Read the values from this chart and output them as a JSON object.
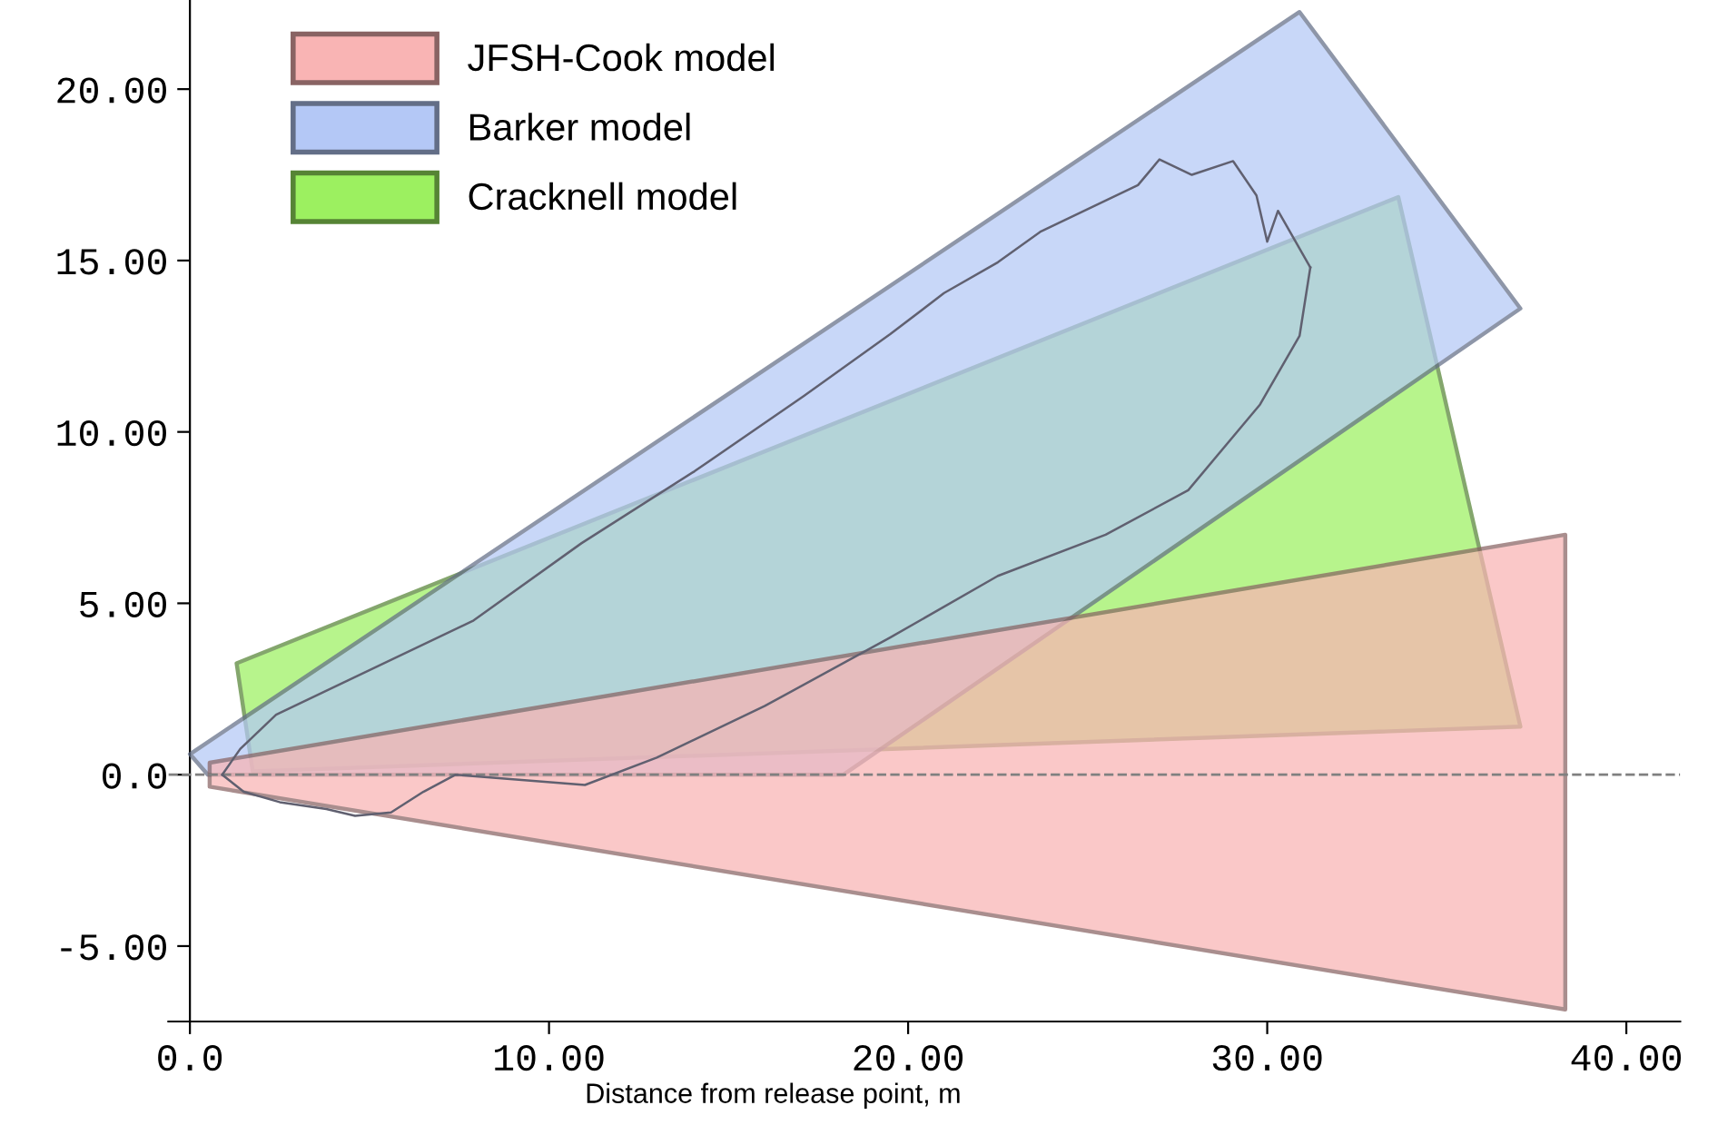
{
  "chart_data": {
    "type": "area",
    "xlabel": "Distance from release point, m",
    "xlim": [
      -0.6,
      41.5
    ],
    "ylim": [
      -7.2,
      22.6
    ],
    "xticks": [
      {
        "value": 0,
        "label": "0.0"
      },
      {
        "value": 10,
        "label": "10.00"
      },
      {
        "value": 20,
        "label": "20.00"
      },
      {
        "value": 30,
        "label": "30.00"
      },
      {
        "value": 40,
        "label": "40.00"
      }
    ],
    "yticks": [
      {
        "value": -5,
        "label": "-5.00"
      },
      {
        "value": 0,
        "label": "0.0"
      },
      {
        "value": 5,
        "label": "5.00"
      },
      {
        "value": 10,
        "label": "10.00"
      },
      {
        "value": 15,
        "label": "15.00"
      },
      {
        "value": 20,
        "label": "20.00"
      }
    ],
    "legend": "top left",
    "grid": false,
    "ref_lines": [
      {
        "axis": "y",
        "value": 0,
        "color": "#808080",
        "line_style": "dashed"
      }
    ],
    "series": [
      {
        "name": "Cracknell model",
        "color": "#9cf060",
        "x": [
          1.3,
          33.65,
          37.05,
          1.75
        ],
        "values": [
          3.25,
          16.85,
          1.4,
          0.1
        ]
      },
      {
        "name": "Barker model",
        "color": "#b4c8f6",
        "x": [
          0,
          30.9,
          37.05,
          18.2,
          0.5
        ],
        "values": [
          0.6,
          22.25,
          13.6,
          0,
          0
        ]
      },
      {
        "name": "JFSH-Cook model",
        "color": "#f9b4b4",
        "x": [
          0.55,
          38.3,
          38.3,
          0.55
        ],
        "values": [
          0.35,
          7.0,
          -6.85,
          -0.35
        ]
      },
      {
        "type": "line",
        "color": "#606070",
        "x": [
          0.9,
          1.4,
          2.4,
          4.4,
          7.9,
          10.9,
          14.05,
          17.1,
          19.5,
          21.0,
          22.5,
          23.7,
          26.4,
          27.0,
          27.9,
          29.05,
          29.7,
          30.0,
          30.3,
          31.2
        ],
        "values": [
          0,
          0.75,
          1.75,
          2.75,
          4.5,
          6.75,
          8.85,
          11.05,
          12.85,
          14.05,
          14.95,
          15.85,
          17.2,
          17.95,
          17.5,
          17.9,
          16.9,
          15.55,
          16.45,
          14.8
        ]
      },
      {
        "type": "line",
        "color": "#606070",
        "x": [
          0.9,
          1.5,
          2.5,
          3.8,
          4.6,
          5.6,
          6.5,
          7.4,
          11.0,
          13.0,
          16.0,
          19.5,
          22.5,
          25.5,
          27.8,
          29.8,
          30.9,
          31.2
        ],
        "values": [
          0,
          -0.5,
          -0.8,
          -1.0,
          -1.2,
          -1.1,
          -0.5,
          0,
          -0.3,
          0.5,
          2.0,
          4.0,
          5.8,
          7.0,
          8.3,
          10.8,
          12.8,
          14.8
        ]
      }
    ]
  }
}
